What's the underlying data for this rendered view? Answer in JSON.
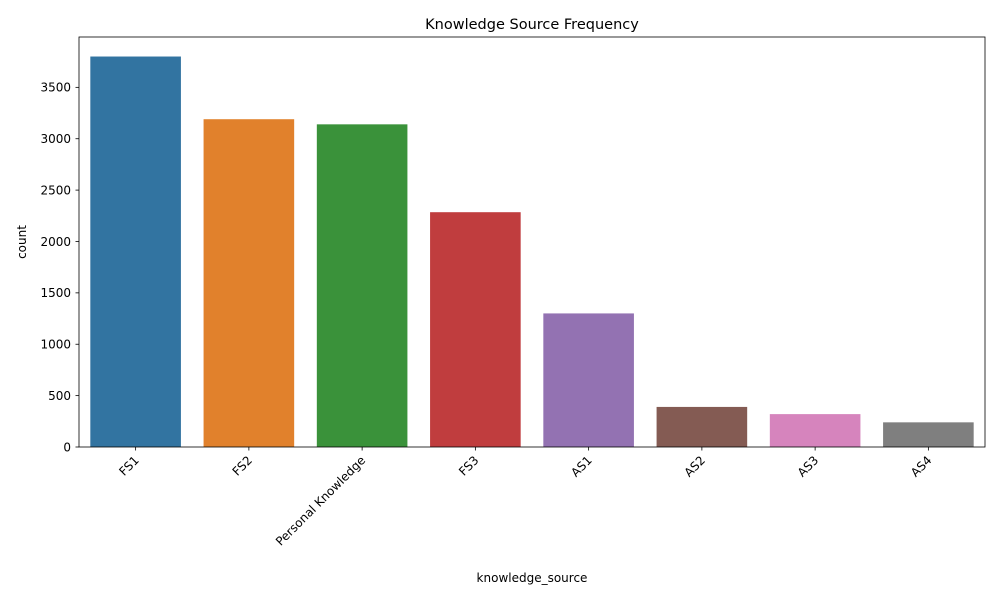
{
  "chart_data": {
    "type": "bar",
    "title": "Knowledge Source Frequency",
    "xlabel": "knowledge_source",
    "ylabel": "count",
    "categories": [
      "FS1",
      "FS2",
      "Personal Knowledge",
      "FS3",
      "AS1",
      "AS2",
      "AS3",
      "AS4"
    ],
    "values": [
      3800,
      3190,
      3140,
      2285,
      1300,
      390,
      320,
      240
    ],
    "colors": [
      "#3274a1",
      "#e1812c",
      "#3a923a",
      "#c03d3e",
      "#9372b2",
      "#845b53",
      "#d684bd",
      "#7f7f7f"
    ],
    "ylim": [
      0,
      3990
    ],
    "yticks": [
      0,
      500,
      1000,
      1500,
      2000,
      2500,
      3000,
      3500
    ],
    "grid": false,
    "legend": "none"
  }
}
